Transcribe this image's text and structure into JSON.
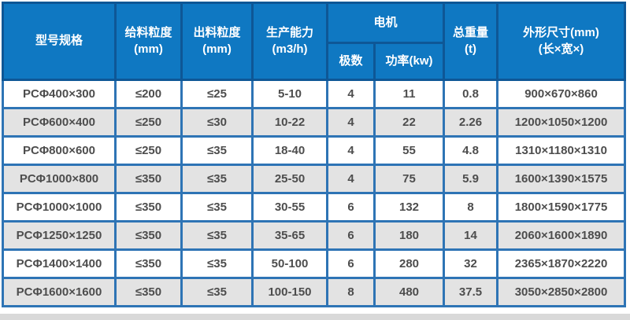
{
  "chart_data": {
    "type": "table",
    "header": {
      "model": "型号规格",
      "feed_size_line1": "给料粒度",
      "feed_size_line2": "(mm)",
      "output_size_line1": "出料粒度",
      "output_size_line2": "(mm)",
      "capacity_line1": "生产能力",
      "capacity_line2": "(m3/h)",
      "motor": "电机",
      "poles": "极数",
      "power": "功率(kw)",
      "weight_line1": "总重量",
      "weight_line2": "(t)",
      "dimensions_line1": "外形尺寸(mm)",
      "dimensions_line2": "(长×宽×)"
    },
    "rows": [
      [
        "PCΦ400×300",
        "≤200",
        "≤25",
        "5-10",
        "4",
        "11",
        "0.8",
        "900×670×860"
      ],
      [
        "PCΦ600×400",
        "≤250",
        "≤30",
        "10-22",
        "4",
        "22",
        "2.26",
        "1200×1050×1200"
      ],
      [
        "PCΦ800×600",
        "≤250",
        "≤35",
        "18-40",
        "4",
        "55",
        "4.8",
        "1310×1180×1310"
      ],
      [
        "PCΦ1000×800",
        "≤350",
        "≤35",
        "25-50",
        "4",
        "75",
        "5.9",
        "1600×1390×1575"
      ],
      [
        "PCΦ1000×1000",
        "≤350",
        "≤35",
        "30-55",
        "6",
        "132",
        "8",
        "1800×1590×1775"
      ],
      [
        "PCΦ1250×1250",
        "≤350",
        "≤35",
        "35-65",
        "6",
        "180",
        "14",
        "2060×1600×1890"
      ],
      [
        "PCΦ1400×1400",
        "≤350",
        "≤35",
        "50-100",
        "6",
        "280",
        "32",
        "2365×1870×2220"
      ],
      [
        "PCΦ1600×1600",
        "≤350",
        "≤35",
        "100-150",
        "8",
        "480",
        "37.5",
        "3050×2850×2800"
      ]
    ]
  },
  "colors": {
    "header_bg": "#0f78c2",
    "header_border": "#0e5796",
    "outer_border": "#1a5a96",
    "grid_border": "#2e74b5",
    "row_bg": "#ffffff",
    "row_alt_bg": "#e3e3e3",
    "header_text": "#ffffff",
    "cell_text": "#4d4d4d"
  }
}
